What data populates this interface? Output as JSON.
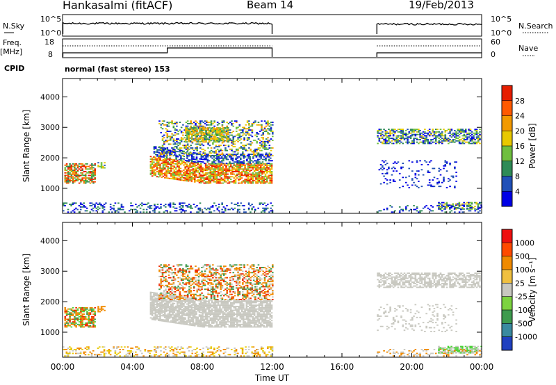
{
  "header": {
    "station": "Hankasalmi (fitACF)",
    "beam": "Beam 14",
    "date": "19/Feb/2013"
  },
  "top_panel": {
    "nsky_label": "N.Sky",
    "nsky_ticks": [
      "10^5",
      "10^0"
    ],
    "nsearch_label": "N.Search",
    "nsearch_ticks": [
      "10^5",
      "10^0"
    ],
    "freq_label": "Freq.",
    "freq_unit": "[MHz]",
    "freq_ticks": [
      "18",
      "8"
    ],
    "nave_label": "Nave",
    "nave_ticks": [
      "60",
      "0"
    ],
    "cpid_label": "CPID",
    "cpid_text": "normal (fast stereo) 153"
  },
  "chart_data": [
    {
      "type": "heatmap",
      "name": "power-panel",
      "xlabel": "Time UT",
      "ylabel": "Slant Range [km]",
      "xlim": [
        0,
        24
      ],
      "ylim": [
        180,
        4600
      ],
      "xticks": [
        "00:00",
        "04:00",
        "08:00",
        "12:00",
        "16:00",
        "20:00",
        "00:00"
      ],
      "yticks": [
        1000,
        2000,
        3000,
        4000
      ],
      "colorbar": {
        "label": "Power [dB]",
        "ticks": [
          "4",
          "8",
          "12",
          "16",
          "20",
          "24",
          "28"
        ],
        "colors": [
          "#0000e6",
          "#2050b8",
          "#2e8b57",
          "#6fbf3f",
          "#e8c800",
          "#f39a00",
          "#ff5a00",
          "#e61e00"
        ]
      },
      "data_gaps_hours": [
        [
          12.0,
          18.0
        ]
      ],
      "echo_regions": [
        {
          "t": [
            0.1,
            1.9
          ],
          "r": [
            1150,
            1800
          ],
          "level": "high"
        },
        {
          "t": [
            5.0,
            12.0
          ],
          "r": [
            1150,
            2050
          ],
          "level": "high"
        },
        {
          "t": [
            5.5,
            12.0
          ],
          "r": [
            2050,
            3200
          ],
          "level": "medium"
        },
        {
          "t": [
            18.0,
            23.9
          ],
          "r": [
            2400,
            3000
          ],
          "level": "medium"
        },
        {
          "t": [
            21.5,
            24.0
          ],
          "r": [
            300,
            550
          ],
          "level": "low"
        }
      ]
    },
    {
      "type": "heatmap",
      "name": "velocity-panel",
      "xlabel": "Time UT",
      "ylabel": "Slant Range [km]",
      "xlim": [
        0,
        24
      ],
      "ylim": [
        180,
        4600
      ],
      "xticks": [
        "00:00",
        "04:00",
        "08:00",
        "12:00",
        "16:00",
        "20:00",
        "00:00"
      ],
      "yticks": [
        1000,
        2000,
        3000,
        4000
      ],
      "colorbar": {
        "label": "Velocity [m s⁻¹]",
        "ticks": [
          "1000",
          "500",
          "100",
          "25",
          "-25",
          "-100",
          "-500",
          "-1000"
        ],
        "colors": [
          "#2040c0",
          "#3a8aa0",
          "#3e9b4e",
          "#7dd340",
          "#c8c8c0",
          "#f0c040",
          "#f08a00",
          "#ff4a00",
          "#ee1010"
        ]
      },
      "data_gaps_hours": [
        [
          12.0,
          18.0
        ]
      ],
      "echo_regions": [
        {
          "t": [
            0.1,
            1.9
          ],
          "r": [
            1150,
            1800
          ],
          "level": "orange"
        },
        {
          "t": [
            5.0,
            12.0
          ],
          "r": [
            1150,
            2050
          ],
          "level": "grey"
        },
        {
          "t": [
            5.5,
            12.0
          ],
          "r": [
            2050,
            3200
          ],
          "level": "orange"
        },
        {
          "t": [
            18.0,
            23.9
          ],
          "r": [
            2400,
            3000
          ],
          "level": "grey"
        },
        {
          "t": [
            21.5,
            24.0
          ],
          "r": [
            300,
            550
          ],
          "level": "green"
        }
      ]
    }
  ],
  "style": {
    "power_colors": [
      "#0000e6",
      "#1f4fb4",
      "#2e8b57",
      "#6fbf3f",
      "#e8c800",
      "#f39a00",
      "#ff5a00",
      "#e61e00"
    ],
    "vel_grey": "#c8c8c0",
    "vel_orange": "#f08a00",
    "vel_red": "#ee2a00",
    "vel_green": "#4ed33a",
    "vel_darkgreen": "#3e9b4e"
  }
}
